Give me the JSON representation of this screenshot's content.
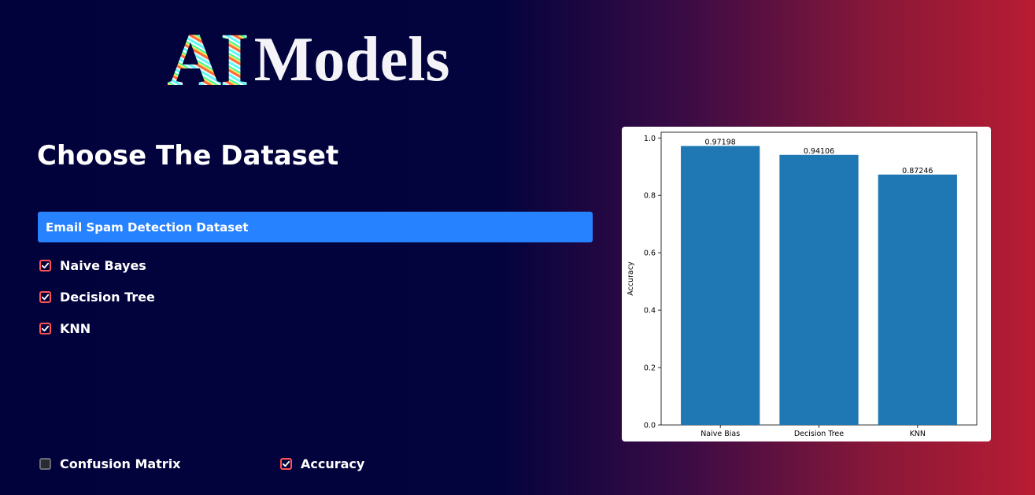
{
  "logo": {
    "ai": "AI",
    "models": "Models"
  },
  "heading": "Choose The Dataset",
  "dataset": {
    "selected": "Email Spam Detection Dataset"
  },
  "models": [
    {
      "label": "Naive Bayes",
      "checked": true
    },
    {
      "label": "Decision Tree",
      "checked": true
    },
    {
      "label": "KNN",
      "checked": true
    }
  ],
  "metrics": [
    {
      "label": "Confusion Matrix",
      "checked": false
    },
    {
      "label": "Accuracy",
      "checked": true
    }
  ],
  "colors": {
    "accent": "#2782ff",
    "checkbox": "#ff5252",
    "bar": "#1f77b4"
  },
  "chart_data": {
    "type": "bar",
    "categories": [
      "Naive Bias",
      "Decision Tree",
      "KNN"
    ],
    "values": [
      0.97198,
      0.94106,
      0.87246
    ],
    "data_labels": [
      "0.97198",
      "0.94106",
      "0.87246"
    ],
    "xlabel": "",
    "ylabel": "Accuracy",
    "ylim": [
      0,
      1.02
    ],
    "yticks": [
      0.0,
      0.2,
      0.4,
      0.6,
      0.8,
      1.0
    ],
    "ytick_labels": [
      "0.0",
      "0.2",
      "0.4",
      "0.6",
      "0.8",
      "1.0"
    ],
    "grid": false,
    "legend": "none"
  }
}
